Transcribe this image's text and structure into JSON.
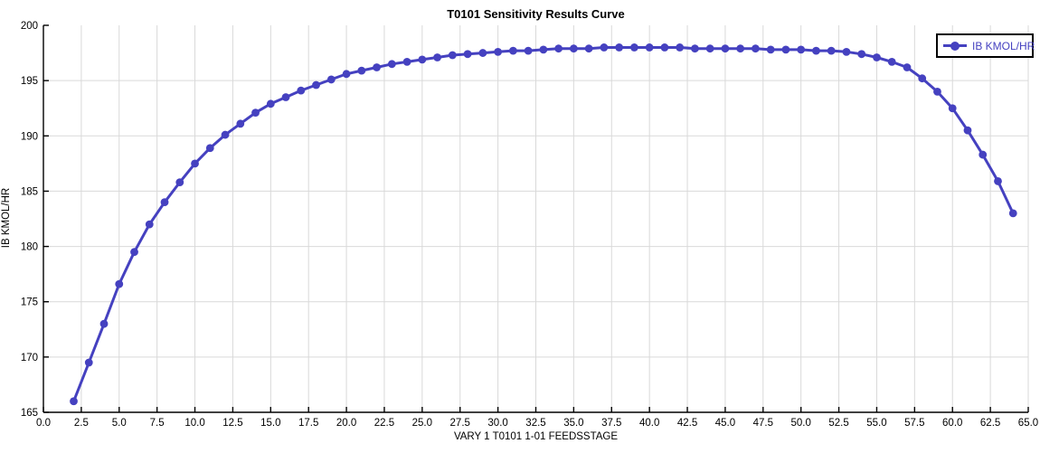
{
  "title": "T0101 Sensitivity Results Curve",
  "colors": {
    "series": "#4541c0",
    "grid": "#d9d9d9",
    "axis": "#000000",
    "text": "#000000",
    "background": "#ffffff",
    "legend_border": "#000000"
  },
  "chart_data": {
    "type": "line",
    "title": "T0101 Sensitivity Results Curve",
    "xlabel": "VARY  1 T0101 1-01 FEEDSSTAGE",
    "ylabel": "IB KMOL/HR",
    "legend_label": "IB KMOL/HR",
    "legend_position": "top-right",
    "grid": true,
    "xlim": [
      0,
      65
    ],
    "ylim": [
      165,
      200
    ],
    "x_tick_step": 2.5,
    "y_tick_step": 5,
    "x_ticks": [
      "0.0",
      "2.5",
      "5.0",
      "7.5",
      "10.0",
      "12.5",
      "15.0",
      "17.5",
      "20.0",
      "22.5",
      "25.0",
      "27.5",
      "30.0",
      "32.5",
      "35.0",
      "37.5",
      "40.0",
      "42.5",
      "45.0",
      "47.5",
      "50.0",
      "52.5",
      "55.0",
      "57.5",
      "60.0",
      "62.5",
      "65.0"
    ],
    "y_ticks": [
      "165",
      "170",
      "175",
      "180",
      "185",
      "190",
      "195",
      "200"
    ],
    "series": [
      {
        "name": "IB KMOL/HR",
        "color": "#4541c0",
        "marker": "circle",
        "x": [
          2,
          3,
          4,
          5,
          6,
          7,
          8,
          9,
          10,
          11,
          12,
          13,
          14,
          15,
          16,
          17,
          18,
          19,
          20,
          21,
          22,
          23,
          24,
          25,
          26,
          27,
          28,
          29,
          30,
          31,
          32,
          33,
          34,
          35,
          36,
          37,
          38,
          39,
          40,
          41,
          42,
          43,
          44,
          45,
          46,
          47,
          48,
          49,
          50,
          51,
          52,
          53,
          54,
          55,
          56,
          57,
          58,
          59,
          60,
          61,
          62,
          63,
          64
        ],
        "y": [
          166.0,
          169.5,
          173.0,
          176.6,
          179.5,
          182.0,
          184.0,
          185.8,
          187.5,
          188.9,
          190.1,
          191.1,
          192.1,
          192.9,
          193.5,
          194.1,
          194.6,
          195.1,
          195.6,
          195.9,
          196.2,
          196.5,
          196.7,
          196.9,
          197.1,
          197.3,
          197.4,
          197.5,
          197.6,
          197.7,
          197.7,
          197.8,
          197.9,
          197.9,
          197.9,
          198.0,
          198.0,
          198.0,
          198.0,
          198.0,
          198.0,
          197.9,
          197.9,
          197.9,
          197.9,
          197.9,
          197.8,
          197.8,
          197.8,
          197.7,
          197.7,
          197.6,
          197.4,
          197.1,
          196.7,
          196.2,
          195.2,
          194.0,
          192.5,
          190.5,
          188.3,
          185.9,
          183.0
        ]
      }
    ]
  }
}
